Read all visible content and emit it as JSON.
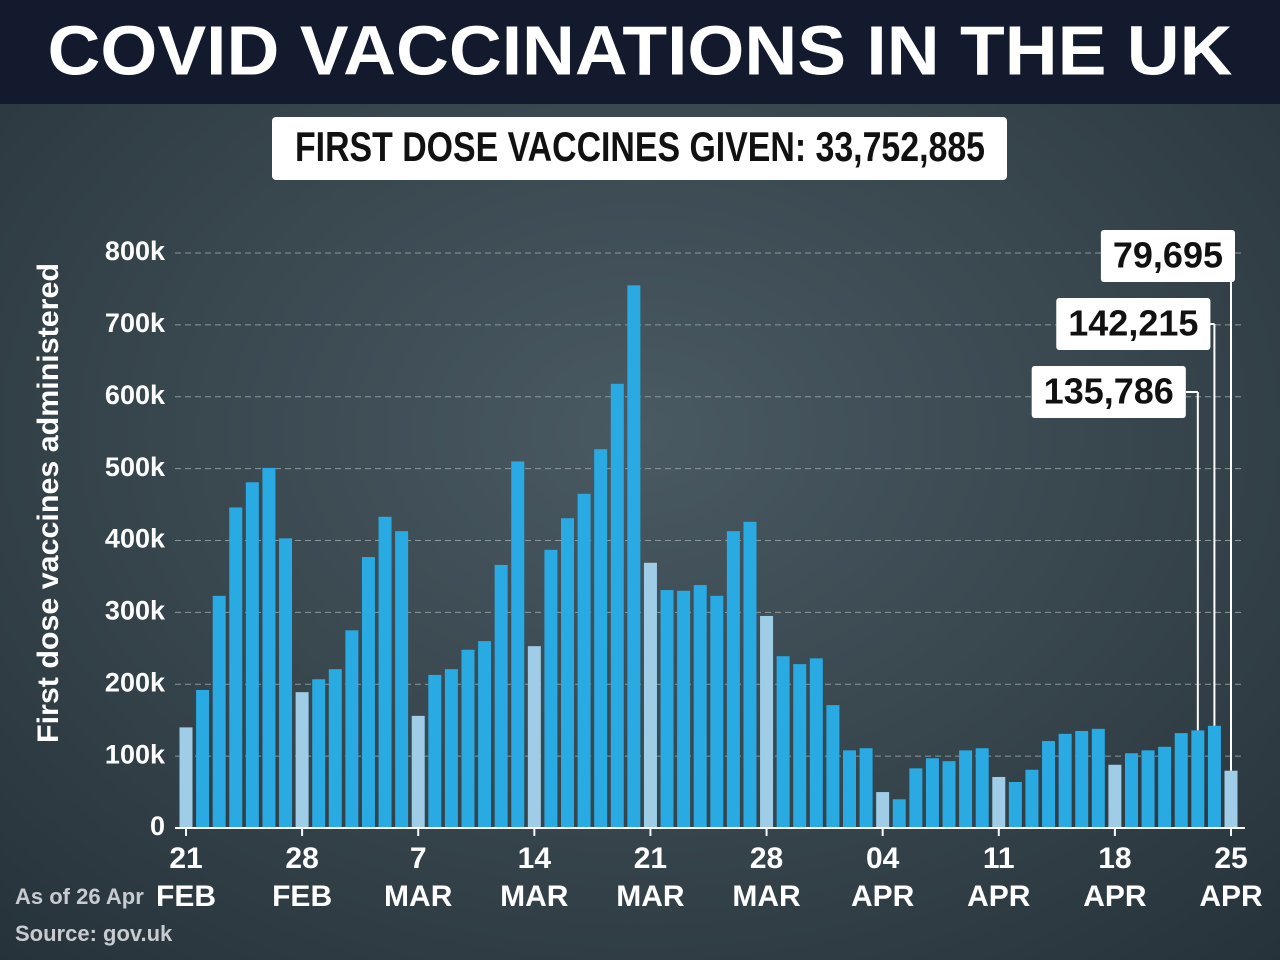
{
  "chart_data": {
    "type": "bar",
    "title": "COVID VACCINATIONS IN THE UK",
    "subtitle": "FIRST DOSE VACCINES GIVEN: 33,752,885",
    "y_label": "First dose vaccines administered",
    "notes": [
      "As of 26 Apr",
      "Source: gov.uk"
    ],
    "categories": [
      "21 FEB",
      null,
      null,
      null,
      null,
      null,
      null,
      "28 FEB",
      null,
      null,
      null,
      null,
      null,
      null,
      "7 MAR",
      null,
      null,
      null,
      null,
      null,
      null,
      "14 MAR",
      null,
      null,
      null,
      null,
      null,
      null,
      "21 MAR",
      null,
      null,
      null,
      null,
      null,
      null,
      "28 MAR",
      null,
      null,
      null,
      null,
      null,
      null,
      "04 APR",
      null,
      null,
      null,
      null,
      null,
      null,
      "11 APR",
      null,
      null,
      null,
      null,
      null,
      null,
      "18 APR",
      null,
      null,
      null,
      null,
      null,
      null,
      "25 APR"
    ],
    "values": [
      140000,
      192000,
      323000,
      446000,
      481000,
      501000,
      403000,
      189000,
      207000,
      221000,
      275000,
      377000,
      433000,
      413000,
      156000,
      213000,
      221000,
      248000,
      260000,
      366000,
      510000,
      253000,
      387000,
      431000,
      465000,
      527000,
      618000,
      755000,
      369000,
      331000,
      330000,
      338000,
      323000,
      413000,
      426000,
      295000,
      239000,
      228000,
      236000,
      171000,
      108000,
      111000,
      50000,
      40000,
      83000,
      97000,
      93000,
      108000,
      111000,
      71000,
      64000,
      81000,
      121000,
      131000,
      135000,
      138000,
      88000,
      104000,
      108000,
      113000,
      132000,
      135786,
      142215,
      79695
    ],
    "value_labels": [
      null,
      null,
      null,
      null,
      null,
      null,
      null,
      null,
      null,
      null,
      null,
      null,
      null,
      null,
      null,
      null,
      null,
      null,
      null,
      null,
      null,
      null,
      null,
      null,
      null,
      null,
      null,
      null,
      null,
      null,
      null,
      null,
      null,
      null,
      null,
      null,
      null,
      null,
      null,
      null,
      null,
      null,
      null,
      null,
      null,
      null,
      null,
      null,
      null,
      null,
      null,
      null,
      null,
      null,
      null,
      null,
      null,
      null,
      null,
      null,
      null,
      "135,786",
      "142,215",
      "79,695"
    ],
    "colors": [
      "#9fcde8",
      "#2aaae2",
      "#2aaae2",
      "#2aaae2",
      "#2aaae2",
      "#2aaae2",
      "#2aaae2",
      "#9fcde8",
      "#2aaae2",
      "#2aaae2",
      "#2aaae2",
      "#2aaae2",
      "#2aaae2",
      "#2aaae2",
      "#9fcde8",
      "#2aaae2",
      "#2aaae2",
      "#2aaae2",
      "#2aaae2",
      "#2aaae2",
      "#2aaae2",
      "#9fcde8",
      "#2aaae2",
      "#2aaae2",
      "#2aaae2",
      "#2aaae2",
      "#2aaae2",
      "#2aaae2",
      "#9fcde8",
      "#2aaae2",
      "#2aaae2",
      "#2aaae2",
      "#2aaae2",
      "#2aaae2",
      "#2aaae2",
      "#9fcde8",
      "#2aaae2",
      "#2aaae2",
      "#2aaae2",
      "#2aaae2",
      "#2aaae2",
      "#2aaae2",
      "#9fcde8",
      "#2aaae2",
      "#2aaae2",
      "#2aaae2",
      "#2aaae2",
      "#2aaae2",
      "#2aaae2",
      "#9fcde8",
      "#2aaae2",
      "#2aaae2",
      "#2aaae2",
      "#2aaae2",
      "#2aaae2",
      "#2aaae2",
      "#9fcde8",
      "#2aaae2",
      "#2aaae2",
      "#2aaae2",
      "#2aaae2",
      "#2aaae2",
      "#2aaae2",
      "#9fcde8"
    ],
    "ylim": [
      0,
      800000
    ],
    "yticks": [
      0,
      {
        "value": 100000,
        "label": "100k"
      },
      {
        "value": 200000,
        "label": "200k"
      },
      {
        "value": 300000,
        "label": "300k"
      },
      {
        "value": 400000,
        "label": "400k"
      },
      {
        "value": 500000,
        "label": "500k"
      },
      {
        "value": 600000,
        "label": "600k"
      },
      {
        "value": 700000,
        "label": "700k"
      },
      {
        "value": 800000,
        "label": "800k"
      }
    ],
    "grid": true
  }
}
